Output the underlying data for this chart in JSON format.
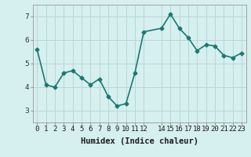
{
  "x": [
    0,
    1,
    2,
    3,
    4,
    5,
    6,
    7,
    8,
    9,
    10,
    11,
    12,
    14,
    15,
    16,
    17,
    18,
    19,
    20,
    21,
    22,
    23
  ],
  "y": [
    5.6,
    4.1,
    4.0,
    4.6,
    4.7,
    4.4,
    4.1,
    4.35,
    3.6,
    3.2,
    3.3,
    4.6,
    6.35,
    6.5,
    7.1,
    6.5,
    6.1,
    5.55,
    5.8,
    5.75,
    5.35,
    5.25,
    5.45
  ],
  "line_color": "#1c7872",
  "marker": "D",
  "marker_size": 2.5,
  "bg_color": "#d6efef",
  "grid_color": "#b8d8d8",
  "xlabel": "Humidex (Indice chaleur)",
  "ylim": [
    2.5,
    7.5
  ],
  "xlim": [
    -0.5,
    23.5
  ],
  "yticks": [
    3,
    4,
    5,
    6,
    7
  ],
  "xticks": [
    0,
    1,
    2,
    3,
    4,
    5,
    6,
    7,
    8,
    9,
    10,
    11,
    12,
    14,
    15,
    16,
    17,
    18,
    19,
    20,
    21,
    22,
    23
  ],
  "xtick_labels": [
    "0",
    "1",
    "2",
    "3",
    "4",
    "5",
    "6",
    "7",
    "8",
    "9",
    "10",
    "11",
    "12",
    "14",
    "15",
    "16",
    "17",
    "18",
    "19",
    "20",
    "21",
    "22",
    "23"
  ],
  "font_size_xlabel": 7.5,
  "font_size_ticks": 6.5,
  "line_width": 1.2
}
